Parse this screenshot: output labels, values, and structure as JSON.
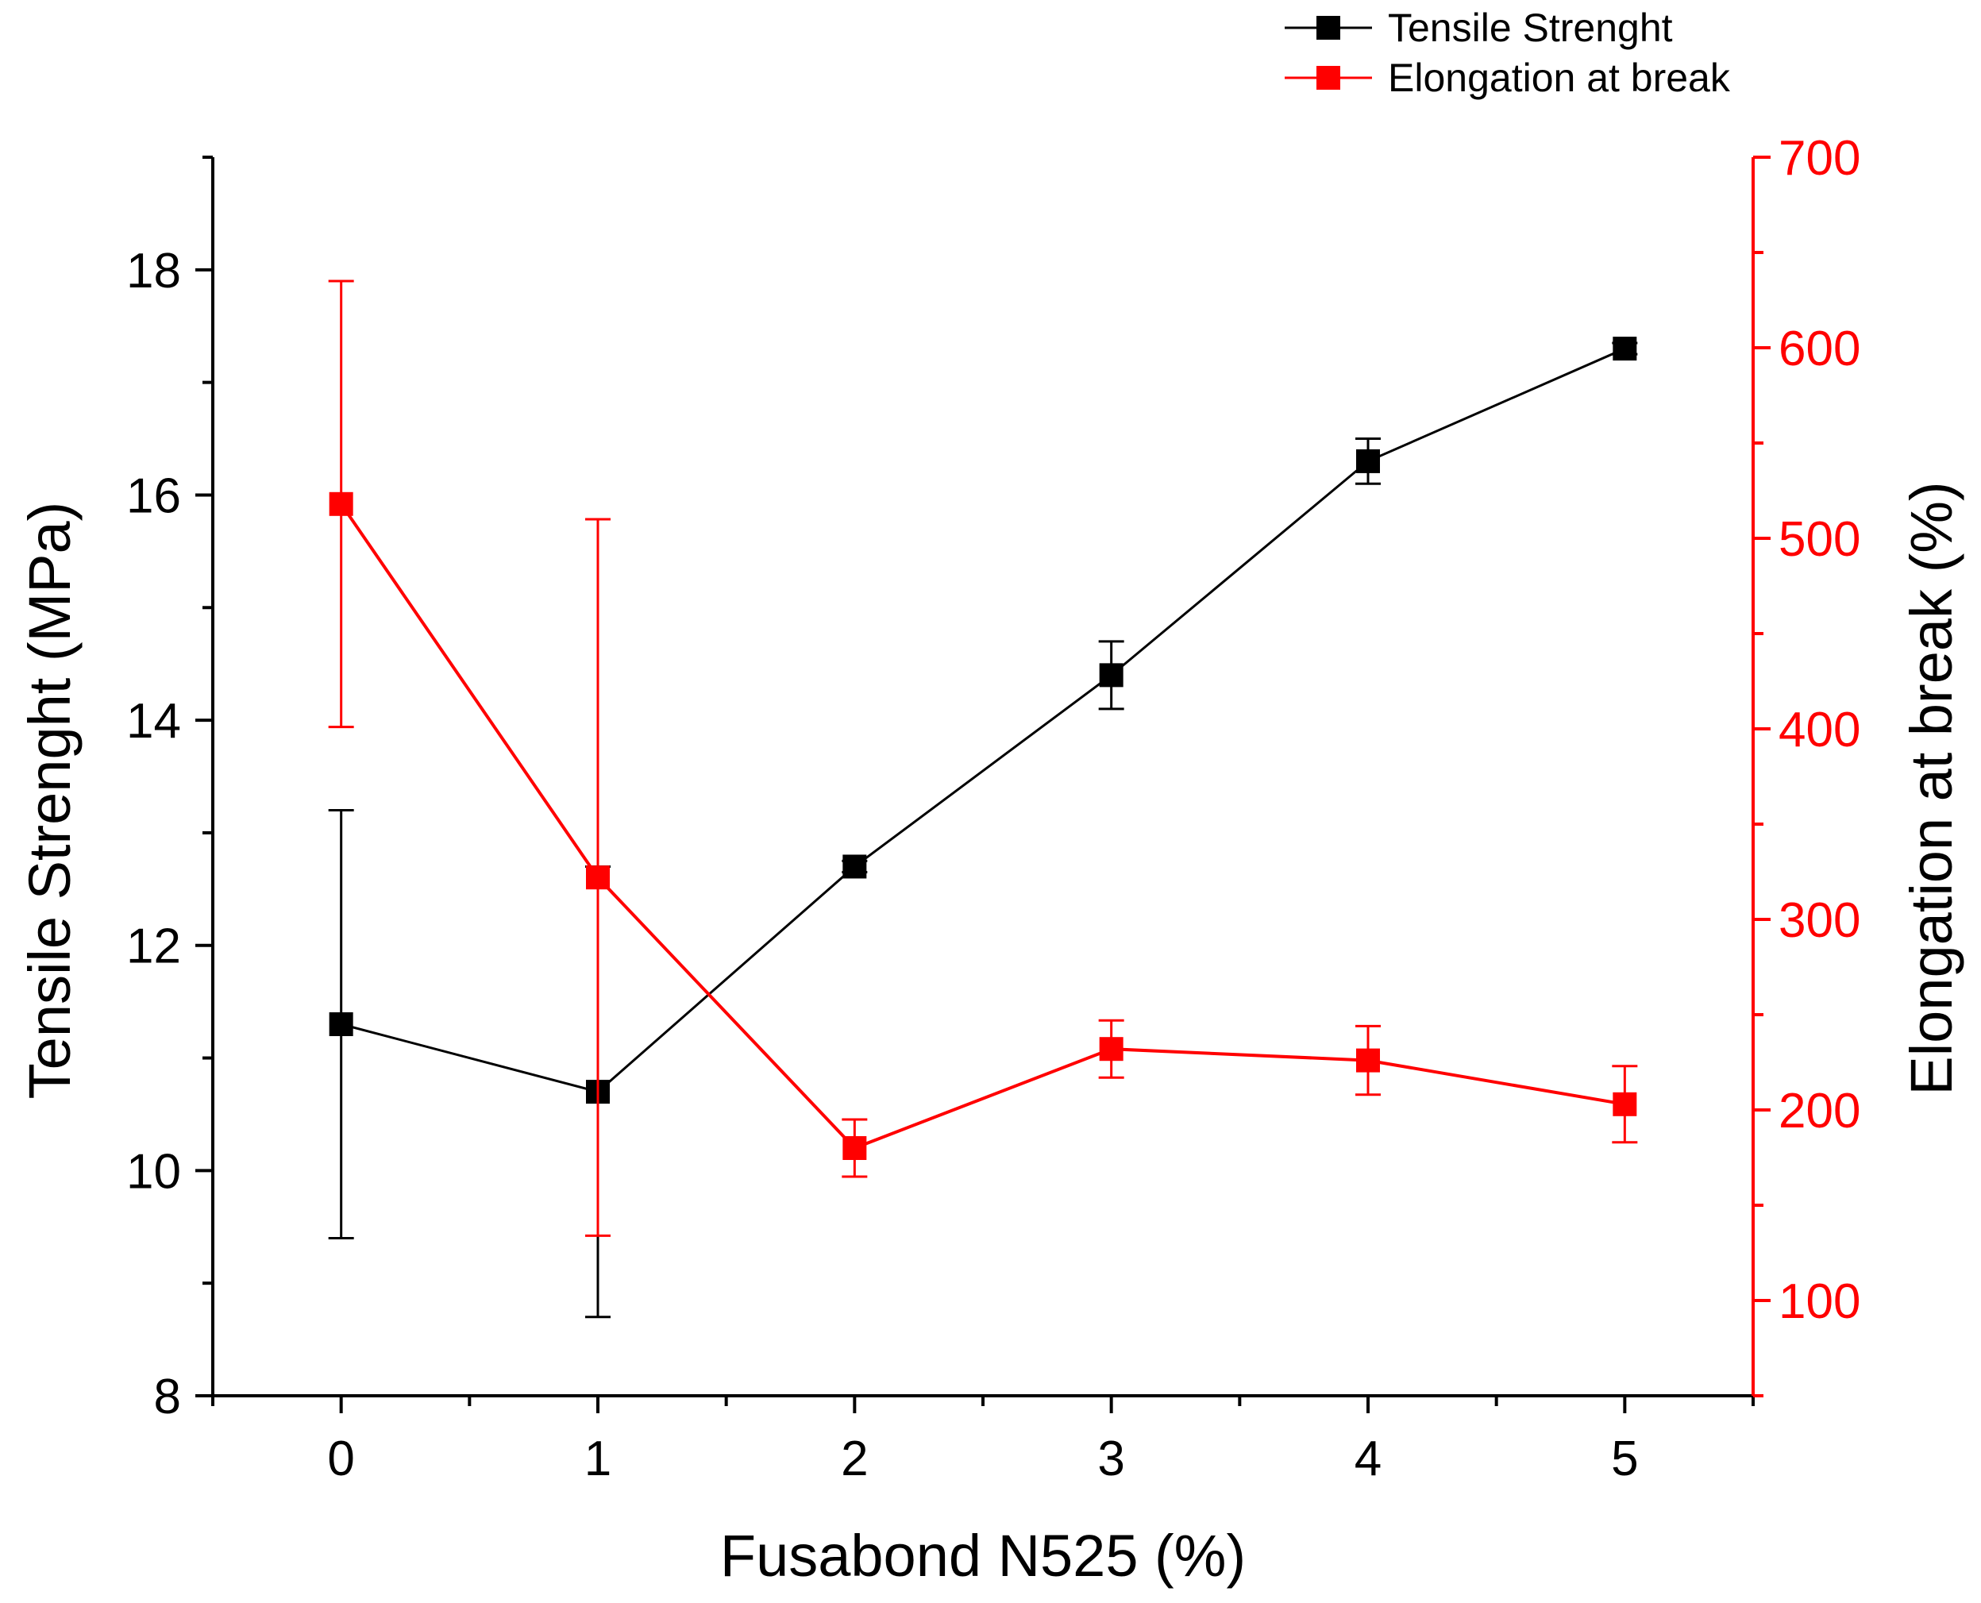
{
  "chart_data": {
    "type": "line",
    "title": "",
    "xlabel": "Fusabond N525 (%)",
    "ylabel": "Tensile Strenght (MPa)",
    "y2label": "Elongation at break (%)",
    "xlim": [
      -0.5,
      5.5
    ],
    "ylim": [
      8,
      19
    ],
    "y2lim": [
      50,
      700
    ],
    "x_ticks": [
      0,
      1,
      2,
      3,
      4,
      5
    ],
    "x_tick_labels": [
      "0",
      "1",
      "2",
      "3",
      "4",
      "5"
    ],
    "y_ticks": [
      8,
      10,
      12,
      14,
      16,
      18
    ],
    "y_tick_labels": [
      "8",
      "10",
      "12",
      "14",
      "16",
      "18"
    ],
    "y2_ticks": [
      100,
      200,
      300,
      400,
      500,
      600,
      700
    ],
    "y2_tick_labels": [
      "100",
      "200",
      "300",
      "400",
      "500",
      "600",
      "700"
    ],
    "grid": false,
    "legend_position": "top-right",
    "series": [
      {
        "name": "Tensile Strenght",
        "axis": "left",
        "color": "#000000",
        "marker": "square",
        "x": [
          0,
          1,
          2,
          3,
          4,
          5
        ],
        "values": [
          11.3,
          10.7,
          12.7,
          14.4,
          16.3,
          17.3
        ],
        "error": [
          1.9,
          2.0,
          0.05,
          0.3,
          0.2,
          0.05
        ]
      },
      {
        "name": "Elongation at break",
        "axis": "right",
        "color": "#ff0000",
        "marker": "square",
        "x": [
          0,
          1,
          2,
          3,
          4,
          5
        ],
        "values": [
          518,
          322,
          180,
          232,
          226,
          203
        ],
        "error": [
          117,
          188,
          15,
          15,
          18,
          20
        ]
      }
    ]
  }
}
